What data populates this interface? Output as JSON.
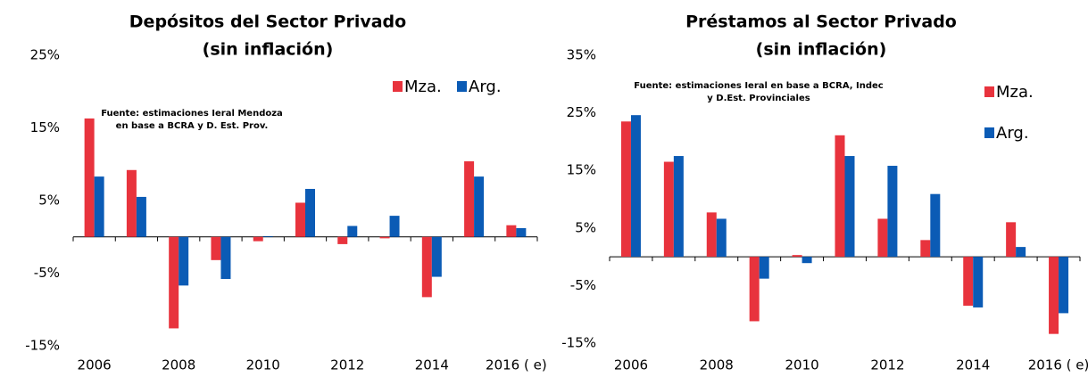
{
  "chart_data": [
    {
      "type": "bar",
      "title": "Depósitos del Sector Privado",
      "subtitle": "(sin inflación)",
      "annotation": [
        "Fuente: estimaciones Ieral Mendoza",
        "en base a BCRA y D. Est. Prov."
      ],
      "categories": [
        "2006",
        null,
        "2008",
        null,
        "2010",
        null,
        "2012",
        null,
        "2014",
        null,
        "2016 ( e)"
      ],
      "series": [
        {
          "name": "Mza.",
          "color": "#e8333d",
          "values": [
            16.3,
            9.2,
            -12.6,
            -3.2,
            -0.6,
            4.7,
            -1.0,
            -0.2,
            -8.3,
            10.4,
            1.6
          ]
        },
        {
          "name": "Arg.",
          "color": "#0b5bb5",
          "values": [
            8.3,
            5.5,
            -6.7,
            -5.8,
            0.1,
            6.6,
            1.5,
            2.9,
            -5.5,
            8.3,
            1.2
          ]
        }
      ],
      "ylim": [
        -15,
        25
      ],
      "yticks": [
        {
          "value": 25,
          "label": "25%"
        },
        {
          "value": 15,
          "label": "15%"
        },
        {
          "value": 5,
          "label": "5%"
        },
        {
          "value": -5,
          "label": "-5%"
        },
        {
          "value": -15,
          "label": "-15%"
        }
      ],
      "grid": false,
      "legend": "upper right"
    },
    {
      "type": "bar",
      "title": "Préstamos al Sector Privado",
      "subtitle": "(sin inflación)",
      "annotation": [
        "Fuente: estimaciones Ieral en base a BCRA, Indec",
        "y D.Est. Provinciales"
      ],
      "categories": [
        "2006",
        null,
        "2008",
        null,
        "2010",
        null,
        "2012",
        null,
        "2014",
        null,
        "2016 ( e)"
      ],
      "series": [
        {
          "name": "Mza.",
          "color": "#e8333d",
          "values": [
            23.5,
            16.5,
            7.7,
            -11.2,
            0.3,
            21.1,
            6.6,
            2.9,
            -8.5,
            6.0,
            -13.4
          ]
        },
        {
          "name": "Arg.",
          "color": "#0b5bb5",
          "values": [
            24.6,
            17.5,
            6.6,
            -3.8,
            -1.1,
            17.5,
            15.8,
            10.9,
            -8.8,
            1.7,
            -9.8
          ]
        }
      ],
      "ylim": [
        -15,
        35
      ],
      "yticks": [
        {
          "value": 35,
          "label": "35%"
        },
        {
          "value": 25,
          "label": "25%"
        },
        {
          "value": 15,
          "label": "15%"
        },
        {
          "value": 5,
          "label": "5%"
        },
        {
          "value": -5,
          "label": "-5%"
        },
        {
          "value": -15,
          "label": "-15%"
        }
      ],
      "grid": false,
      "legend": "upper right"
    }
  ]
}
